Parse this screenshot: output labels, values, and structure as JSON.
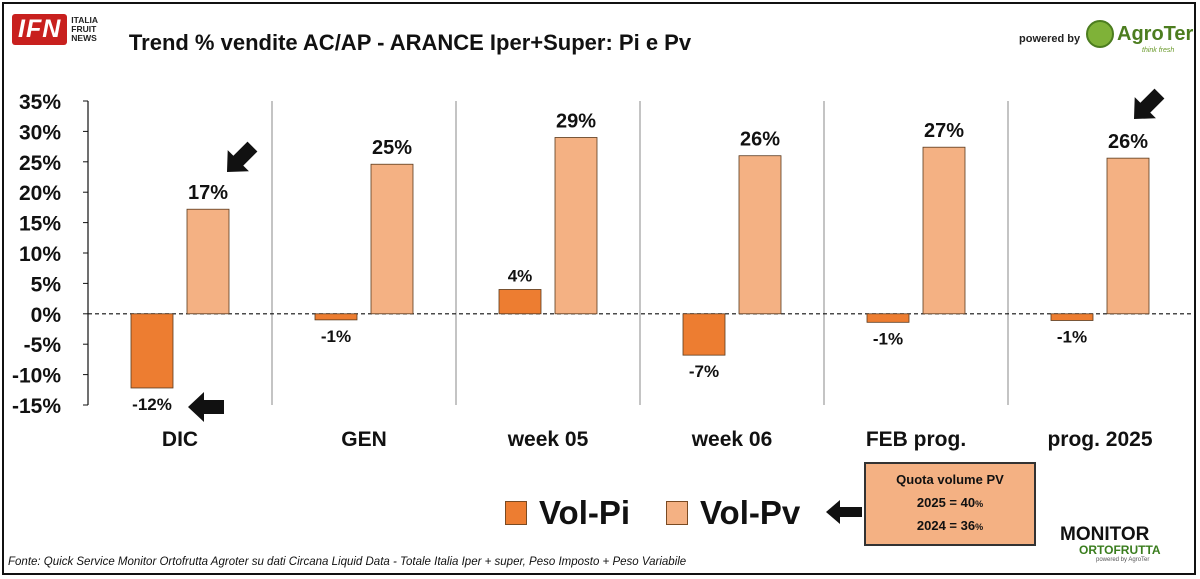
{
  "header": {
    "logo_main": "IFN",
    "logo_sub": [
      "ITALIA",
      "FRUIT",
      "NEWS"
    ],
    "powered_by": "powered by",
    "brand": "AgroTer",
    "brand_tagline": "think fresh"
  },
  "chart_data": {
    "type": "bar",
    "title": "Trend % vendite  AC/AP - ARANCE  Iper+Super: Pi e Pv",
    "categories": [
      "DIC",
      "GEN",
      "week 05",
      "week 06",
      "FEB prog.",
      "prog. 2025"
    ],
    "series": [
      {
        "name": "Vol-Pi",
        "color": "#ed7d31",
        "values": [
          -12.2,
          -1.0,
          4.0,
          -6.8,
          -1.4,
          -1.1
        ],
        "labels": [
          "-12%",
          "-1%",
          "4%",
          "-7%",
          "-1%",
          "-1%"
        ]
      },
      {
        "name": "Vol-Pv",
        "color": "#f4b183",
        "values": [
          17.2,
          24.6,
          29.0,
          26.0,
          27.4,
          25.6
        ],
        "labels": [
          "17%",
          "25%",
          "29%",
          "26%",
          "27%",
          "26%"
        ]
      }
    ],
    "ylim": [
      -15,
      35
    ],
    "yticks": [
      35,
      30,
      25,
      20,
      15,
      10,
      5,
      0,
      -5,
      -10,
      -15
    ],
    "ytick_labels": [
      "35%",
      "30%",
      "25%",
      "20%",
      "15%",
      "10%",
      "5%",
      "0%",
      "-5%",
      "-10%",
      "-15%"
    ],
    "xlabel": "",
    "ylabel": "",
    "legend_position": "bottom-center",
    "annotations": [
      "arrow pointing to DIC Vol-Pv 17%",
      "arrow pointing to DIC Vol-Pi -12%",
      "arrow pointing to prog. 2025 Vol-Pv 26%",
      "arrow pointing to Vol-Pv legend"
    ]
  },
  "legend": {
    "pi_label": "Vol-Pi",
    "pv_label": "Vol-Pv"
  },
  "quota": {
    "title": "Quota volume PV",
    "line1": "2025 = 40",
    "line2": "2024 = 36",
    "unit": "%"
  },
  "monitor_logo": {
    "line1": "MONITOR",
    "line2": "ORTOFRUTTA",
    "line3": "powered by AgroTer"
  },
  "source": "Fonte: Quick Service Monitor Ortofrutta Agroter su dati Circana Liquid Data - Totale Italia Iper + super, Peso Imposto + Peso Variabile"
}
